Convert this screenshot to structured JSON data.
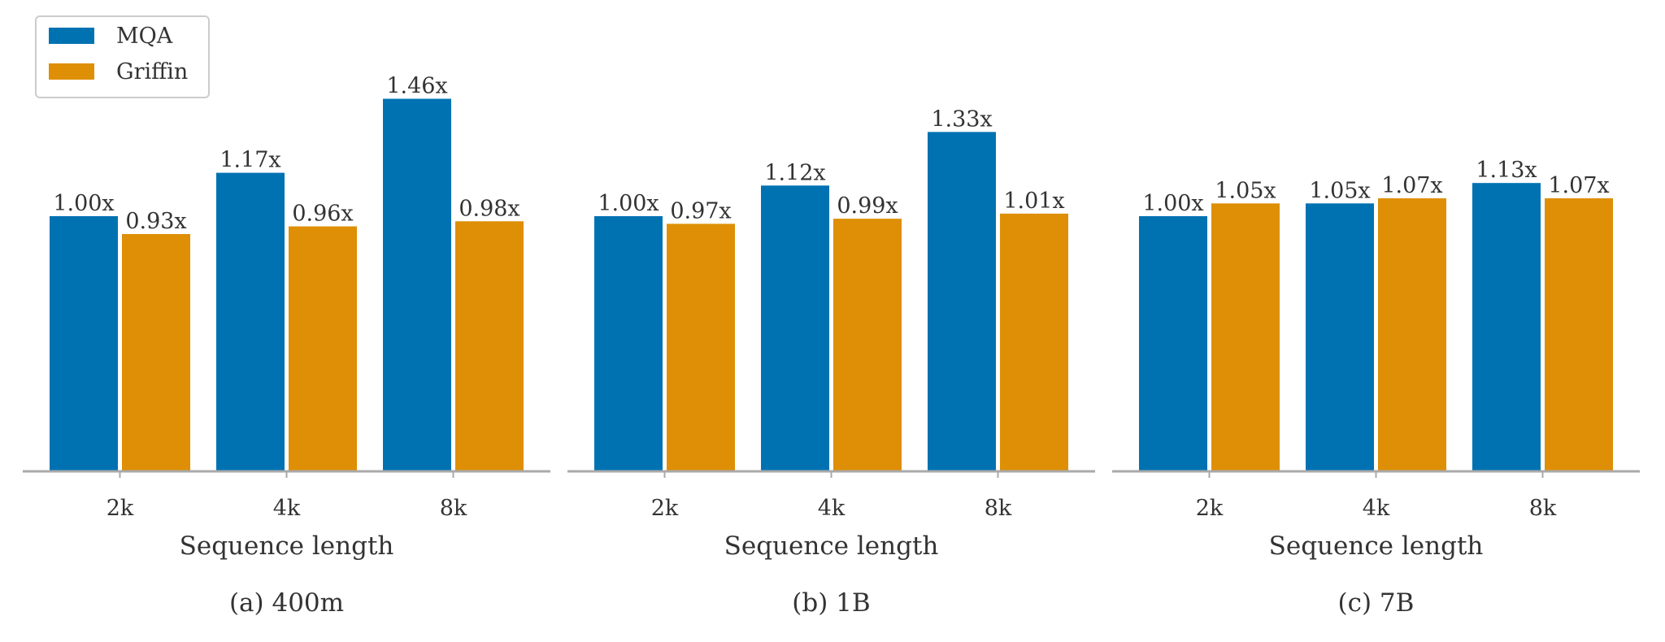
{
  "colors": {
    "mqa": "#0072b2",
    "griffin": "#de8f05",
    "axis": "#aaaaaa",
    "text": "#333333"
  },
  "legend": {
    "position": "top-left",
    "entries": [
      {
        "label": "MQA",
        "color": "#0072b2"
      },
      {
        "label": "Griffin",
        "color": "#de8f05"
      }
    ]
  },
  "chart_data": [
    {
      "type": "bar",
      "caption": "(a)  400m",
      "xlabel": "Sequence length",
      "ylabel": "",
      "categories": [
        "2k",
        "4k",
        "8k"
      ],
      "series": [
        {
          "name": "MQA",
          "values": [
            1.0,
            1.17,
            1.46
          ],
          "labels": [
            "1.00x",
            "1.17x",
            "1.46x"
          ]
        },
        {
          "name": "Griffin",
          "values": [
            0.93,
            0.96,
            0.98
          ],
          "labels": [
            "0.93x",
            "0.96x",
            "0.98x"
          ]
        }
      ],
      "ylim": [
        0,
        1.55
      ],
      "grid": false
    },
    {
      "type": "bar",
      "caption": "(b)  1B",
      "xlabel": "Sequence length",
      "ylabel": "",
      "categories": [
        "2k",
        "4k",
        "8k"
      ],
      "series": [
        {
          "name": "MQA",
          "values": [
            1.0,
            1.12,
            1.33
          ],
          "labels": [
            "1.00x",
            "1.12x",
            "1.33x"
          ]
        },
        {
          "name": "Griffin",
          "values": [
            0.97,
            0.99,
            1.01
          ],
          "labels": [
            "0.97x",
            "0.99x",
            "1.01x"
          ]
        }
      ],
      "ylim": [
        0,
        1.55
      ],
      "grid": false
    },
    {
      "type": "bar",
      "caption": "(c)  7B",
      "xlabel": "Sequence length",
      "ylabel": "",
      "categories": [
        "2k",
        "4k",
        "8k"
      ],
      "series": [
        {
          "name": "MQA",
          "values": [
            1.0,
            1.05,
            1.13
          ],
          "labels": [
            "1.00x",
            "1.05x",
            "1.13x"
          ]
        },
        {
          "name": "Griffin",
          "values": [
            1.05,
            1.07,
            1.07
          ],
          "labels": [
            "1.05x",
            "1.07x",
            "1.07x"
          ]
        }
      ],
      "ylim": [
        0,
        1.55
      ],
      "grid": false
    }
  ]
}
